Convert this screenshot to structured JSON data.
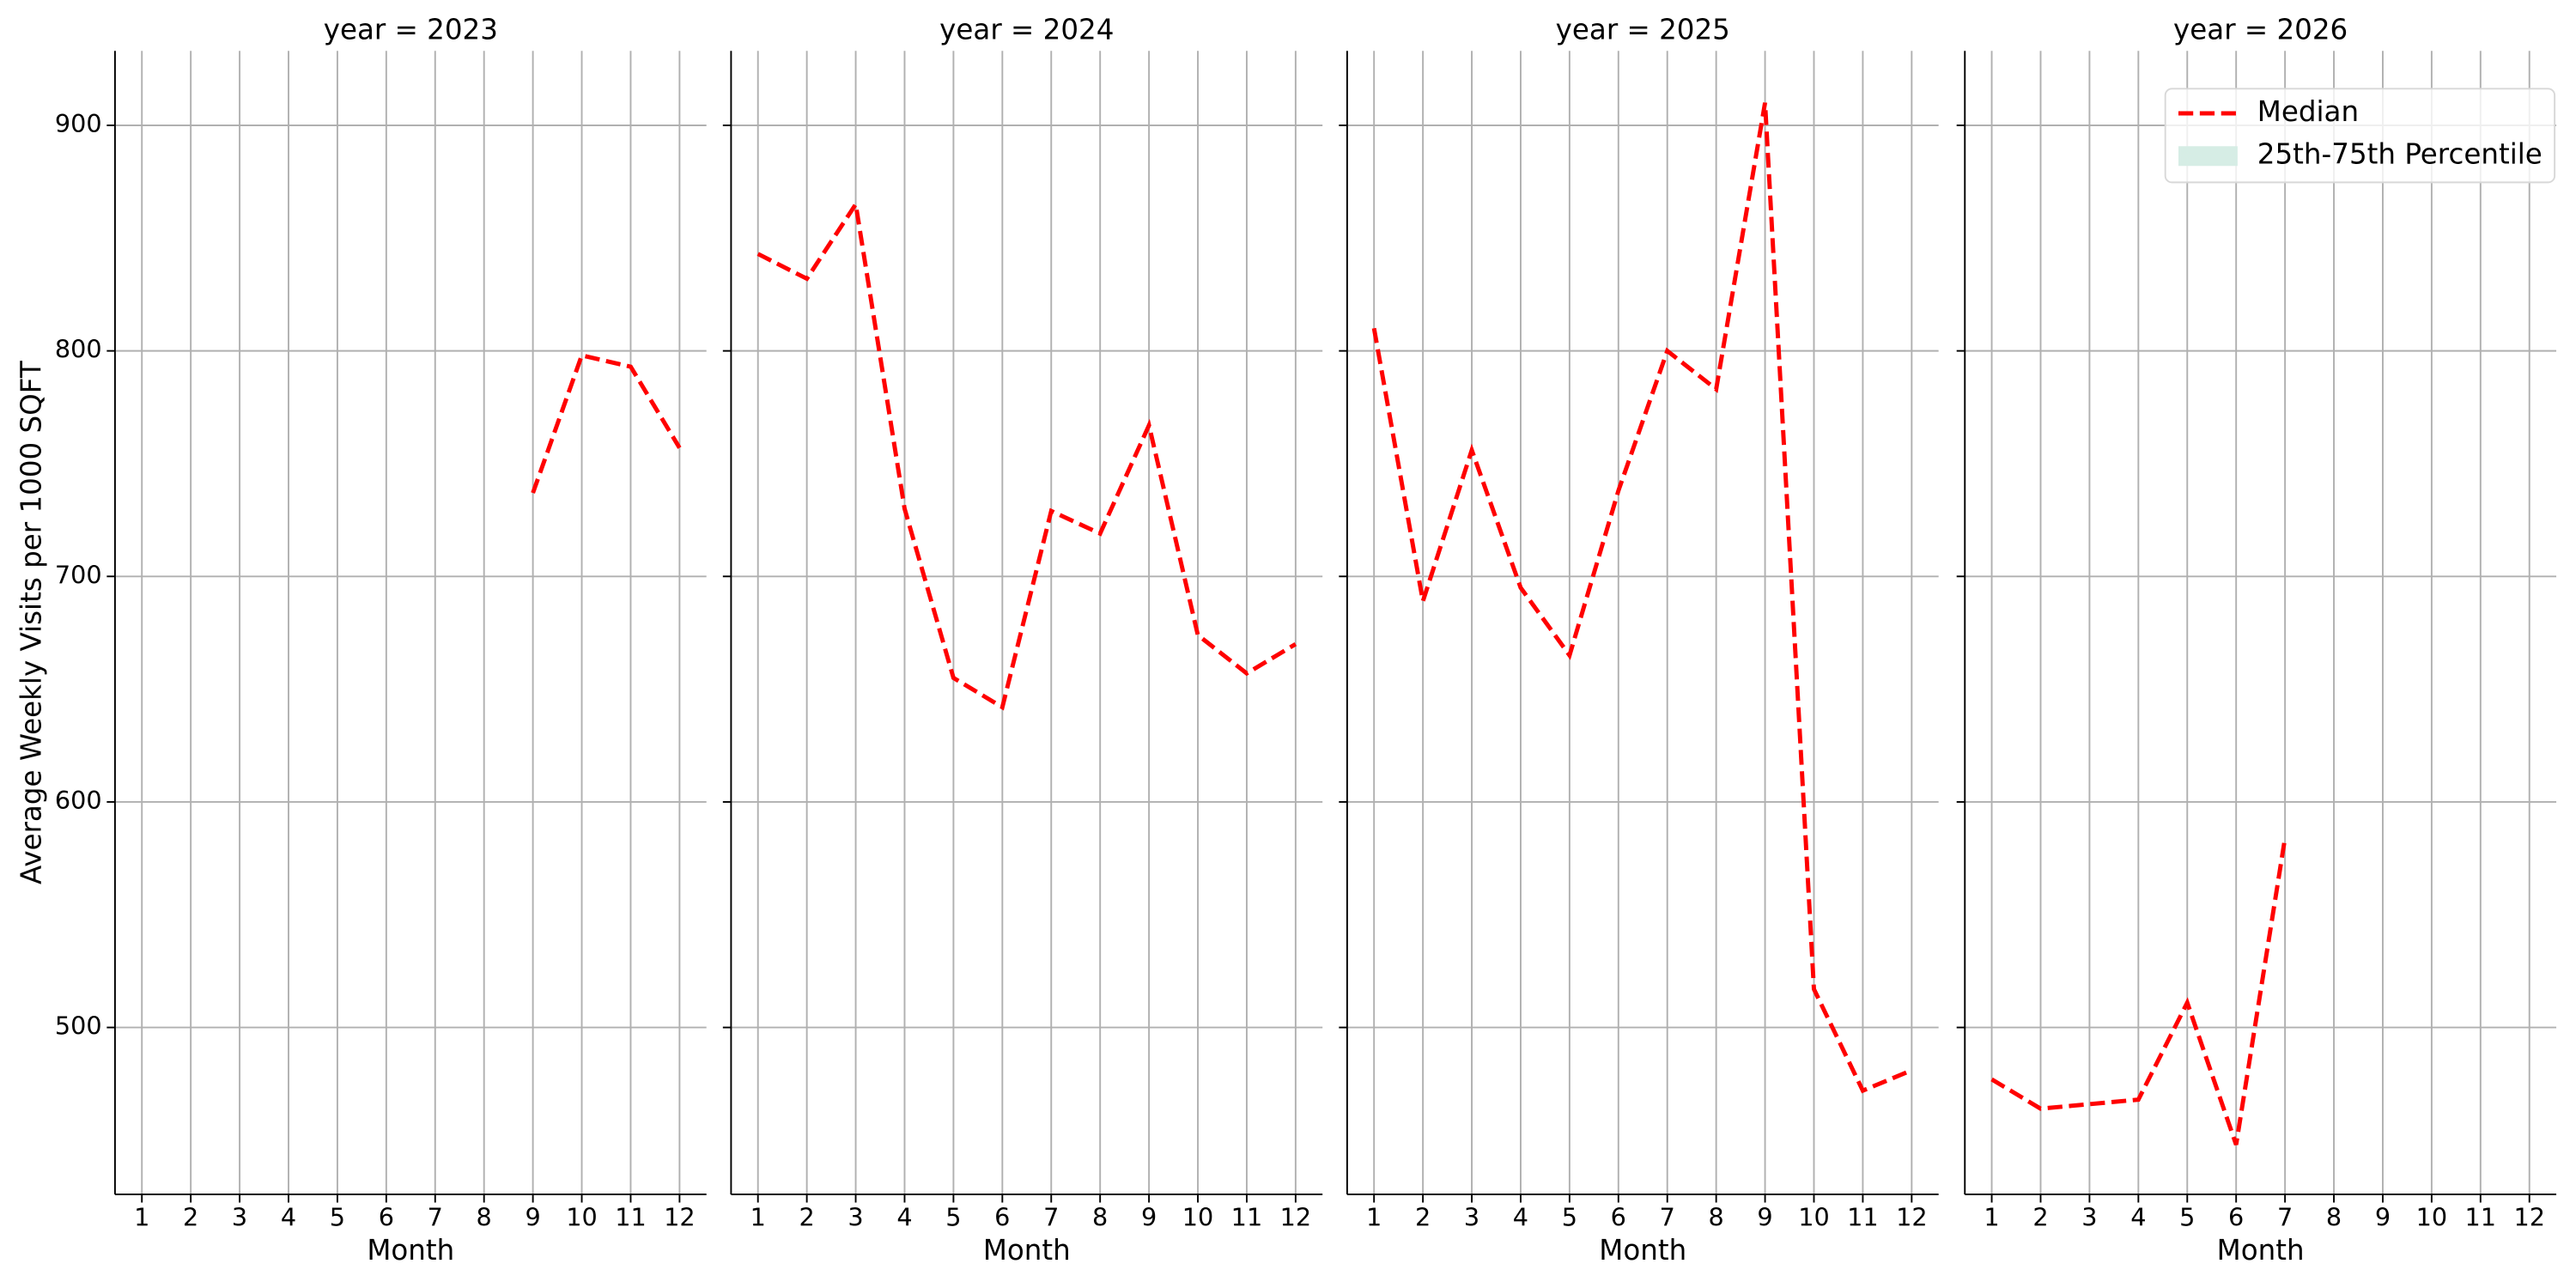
{
  "chart_data": [
    {
      "type": "line",
      "title": "year = 2023",
      "xlabel": "Month",
      "ylabel": "Average Weekly Visits per 1000 SQFT",
      "x": [
        1,
        2,
        3,
        4,
        5,
        6,
        7,
        8,
        9,
        10,
        11,
        12
      ],
      "xlim": [
        0.45,
        12.55
      ],
      "ylim": [
        426,
        933
      ],
      "yticks": [
        500,
        600,
        700,
        800,
        900
      ],
      "grid": true,
      "series": [
        {
          "name": "Median",
          "color": "#ff0000",
          "values": [
            null,
            null,
            null,
            null,
            null,
            null,
            null,
            null,
            737,
            798,
            793,
            757
          ]
        }
      ]
    },
    {
      "type": "line",
      "title": "year = 2024",
      "xlabel": "Month",
      "x": [
        1,
        2,
        3,
        4,
        5,
        6,
        7,
        8,
        9,
        10,
        11,
        12
      ],
      "xlim": [
        0.45,
        12.55
      ],
      "ylim": [
        426,
        933
      ],
      "yticks": [
        500,
        600,
        700,
        800,
        900
      ],
      "grid": true,
      "series": [
        {
          "name": "Median",
          "color": "#ff0000",
          "values": [
            843,
            832,
            865,
            730,
            655,
            642,
            729,
            719,
            767,
            674,
            657,
            670
          ]
        }
      ]
    },
    {
      "type": "line",
      "title": "year = 2025",
      "xlabel": "Month",
      "x": [
        1,
        2,
        3,
        4,
        5,
        6,
        7,
        8,
        9,
        10,
        11,
        12
      ],
      "xlim": [
        0.45,
        12.55
      ],
      "ylim": [
        426,
        933
      ],
      "yticks": [
        500,
        600,
        700,
        800,
        900
      ],
      "grid": true,
      "series": [
        {
          "name": "Median",
          "color": "#ff0000",
          "values": [
            810,
            689,
            756,
            695,
            665,
            738,
            800,
            783,
            910,
            517,
            472,
            481
          ]
        }
      ]
    },
    {
      "type": "line",
      "title": "year = 2026",
      "xlabel": "Month",
      "x": [
        1,
        2,
        3,
        4,
        5,
        6,
        7,
        8,
        9,
        10,
        11,
        12
      ],
      "xlim": [
        0.45,
        12.55
      ],
      "ylim": [
        426,
        933
      ],
      "yticks": [
        500,
        600,
        700,
        800,
        900
      ],
      "grid": true,
      "legend": "upper right",
      "series": [
        {
          "name": "Median",
          "color": "#ff0000",
          "values": [
            477,
            464,
            466,
            468,
            511,
            448,
            584,
            null,
            null,
            null,
            null,
            null
          ]
        },
        {
          "name": "25th-75th Percentile",
          "color": "#d6ede5",
          "values": [
            null,
            null,
            null,
            null,
            null,
            null,
            null,
            null,
            null,
            null,
            null,
            null
          ]
        }
      ]
    }
  ]
}
